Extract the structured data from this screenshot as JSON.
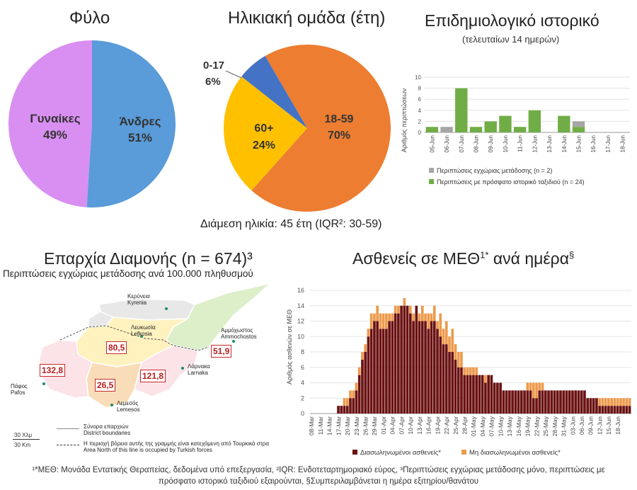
{
  "sex": {
    "title": "Φύλο",
    "colors": {
      "women": "#d98ff2",
      "men": "#5a9bd9"
    },
    "women_label": "Γυναίκες",
    "women_pct": "49%",
    "men_label": "Άνδρες",
    "men_pct": "51%"
  },
  "age": {
    "title": "Ηλικιακή ομάδα (έτη)",
    "median_note": "Διάμεση ηλικία: 45 έτη (IQR²: 30-59)",
    "colors": {
      "a0_17": "#4472c4",
      "a18_59": "#ed7d31",
      "a60": "#ffc000"
    },
    "a0_17_label": "0-17",
    "a0_17_pct": "6%",
    "a18_59_label": "18-59",
    "a18_59_pct": "70%",
    "a60_label": "60+",
    "a60_pct": "24%"
  },
  "epi": {
    "title": "Επιδημιολογικό ιστορικό",
    "subtitle": "(τελευταίων 14 ημερών)",
    "ylabel": "Αριθμός περιπτώσεων",
    "legend_local": "Περιπτώσεις εγχώριας μετάδοσης (n = 2)",
    "legend_travel": "Περιπτώσεις με πρόσφατο ιστορικό ταξιδιού (n = 24)",
    "colors": {
      "local": "#a6a6a6",
      "travel": "#70ad47"
    }
  },
  "map": {
    "title": "Επαρχία Διαμονής (n = 674)³",
    "subtitle": "Περιπτώσεις εγχώριας μετάδοσης ανά 100.000 πληθυσμού",
    "kyrenia": "Κερύνεια",
    "kyrenia_en": "Kyrenia",
    "nicosia": "Λευκωσία",
    "nicosia_en": "Lefkosia",
    "famagusta": "Αμμόχωστος",
    "famagusta_en": "Ammochostos",
    "larnaca": "Λάρνακα",
    "larnaca_en": "Larnaka",
    "paphos": "Πάφος",
    "paphos_en": "Pafos",
    "limassol": "Λεμεσός",
    "limassol_en": "Lemesos",
    "val_nicosia": "80,5",
    "val_famagusta": "51,9",
    "val_paphos": "132,8",
    "val_limassol": "26,5",
    "val_larnaca": "121,8",
    "scale_mi": "30 Χλμ",
    "scale_km": "30 Km",
    "legend_boundaries": "Σύνορα επαρχιών",
    "legend_boundaries_en": "District boundaries",
    "legend_north": "Η περιοχή βόρεια αυτής της γραμμής είναι κατεχόμενη από Τουρκικά στρα",
    "legend_north_en": "Area North of this line is occupied by Turkish forces"
  },
  "icu": {
    "title": "Ασθενείς σε ΜΕΘ",
    "title_sup": "1*",
    "title_rest": " ανά ημέρα",
    "title_sup2": "§",
    "ylabel": "Αριθμός ασθενών σε ΜΕΘ",
    "legend_intub": "Διασωληνωμένοι ασθενείς*",
    "legend_nonintub": "Μη διασωληνωμένοι ασθενείς*",
    "colors": {
      "intub": "#6b1212",
      "nonintub": "#ed9a4c"
    }
  },
  "footnote_line1": "¹*ΜΕΘ: Μονάδα Εντατικής Θεραπείας, δεδομένα υπό επεξεργασία, ²IQR: Ενδοτεταρτημοριακό εύρος, ³Περιπτώσεις εγχώριας μετάδοσης μόνο, περιπτώσεις με",
  "footnote_line2": "πρόσφατο ιστορικό ταξιδιού εξαιρούνται, §Συμπεριλαμβάνεται η ημέρα εξιτηρίου/θανάτου",
  "chart_data": [
    {
      "type": "pie",
      "title": "Φύλο",
      "labels": [
        "Γυναίκες",
        "Άνδρες"
      ],
      "values": [
        49,
        51
      ]
    },
    {
      "type": "pie",
      "title": "Ηλικιακή ομάδα (έτη)",
      "labels": [
        "0-17",
        "18-59",
        "60+"
      ],
      "values": [
        6,
        70,
        24
      ]
    },
    {
      "type": "bar",
      "stacked": true,
      "title": "Επιδημιολογικό ιστορικό",
      "ylabel": "Αριθμός περιπτώσεων",
      "ylim": [
        0,
        10
      ],
      "yticks": [
        0,
        2,
        4,
        6,
        8,
        10
      ],
      "categories": [
        "05-Jun",
        "06-Jun",
        "07-Jun",
        "08-Jun",
        "09-Jun",
        "10-Jun",
        "11-Jun",
        "12-Jun",
        "13-Jun",
        "14-Jun",
        "15-Jun",
        "16-Jun",
        "17-Jun",
        "18-Jun"
      ],
      "x_labels": [
        "05-Jun",
        "06-Jun",
        "07-Jun",
        "08-Jun",
        "09-Jun",
        "10-Jun",
        "11-Jun",
        "12-Jun",
        "13-Jun",
        "14-Jun",
        "15-Jun",
        "16-Jun",
        "17-Jun",
        "18-Jun"
      ],
      "series": [
        {
          "name": "Περιπτώσεις με πρόσφατο ιστορικό ταξιδιού (n = 24)",
          "values": [
            1,
            0,
            8,
            1,
            2,
            3,
            1,
            4,
            0,
            3,
            1,
            0,
            0,
            0
          ]
        },
        {
          "name": "Περιπτώσεις εγχώριας μετάδοσης (n = 2)",
          "values": [
            0,
            1,
            0,
            0,
            0,
            0,
            0,
            0,
            0,
            0,
            1,
            0,
            0,
            0
          ]
        }
      ]
    },
    {
      "type": "bar",
      "stacked": true,
      "title": "Ασθενείς σε ΜΕΘ ανά ημέρα",
      "ylabel": "Αριθμός ασθενών σε ΜΕΘ",
      "ylim": [
        0,
        16
      ],
      "yticks": [
        0,
        2,
        4,
        6,
        8,
        10,
        12,
        14,
        16
      ],
      "x_labels": [
        "08-Mar",
        "11-Mar",
        "14-Mar",
        "17-Mar",
        "20-Mar",
        "23-Mar",
        "26-Mar",
        "29-Mar",
        "01-Apr",
        "04-Apr",
        "07-Apr",
        "10-Apr",
        "13-Apr",
        "16-Apr",
        "19-Apr",
        "22-Apr",
        "25-Apr",
        "28-Apr",
        "01-May",
        "04-May",
        "07-May",
        "10-May",
        "13-May",
        "16-May",
        "19-May",
        "22-May",
        "25-May",
        "28-May",
        "31-May",
        "03-Jun",
        "06-Jun",
        "09-Jun",
        "12-Jun",
        "15-Jun",
        "18-Jun"
      ],
      "days_from": "08-Mar",
      "series": [
        {
          "name": "Διασωληνωμένοι ασθενείς*",
          "values": [
            0,
            0,
            0,
            0,
            0,
            0,
            0,
            0,
            0,
            1,
            1,
            1,
            1,
            2,
            2,
            3,
            5,
            7,
            8,
            10,
            11,
            12,
            12,
            11,
            11,
            11,
            12,
            12,
            13,
            13,
            14,
            14,
            14,
            13,
            12,
            14,
            12,
            12,
            12,
            11,
            12,
            12,
            11,
            10,
            9,
            9,
            8,
            8,
            7,
            6,
            6,
            5,
            5,
            5,
            5,
            5,
            5,
            5,
            4,
            5,
            5,
            4,
            4,
            4,
            3,
            3,
            3,
            3,
            3,
            3,
            3,
            3,
            3,
            3,
            2,
            2,
            3,
            3,
            3,
            3,
            3,
            3,
            3,
            3,
            3,
            3,
            3,
            3,
            3,
            3,
            3,
            3,
            2,
            2,
            2,
            2,
            1,
            1,
            1,
            1,
            1,
            1,
            1,
            1,
            1,
            1,
            1
          ]
        },
        {
          "name": "Μη διασωληνωμένοι ασθενείς*",
          "values": [
            0,
            0,
            0,
            0,
            0,
            0,
            0,
            0,
            0,
            0,
            0,
            1,
            1,
            1,
            1,
            1,
            1,
            1,
            1,
            1,
            2,
            1,
            2,
            2,
            2,
            2,
            1,
            1,
            1,
            1,
            0,
            1,
            0,
            1,
            1,
            0,
            1,
            2,
            1,
            2,
            1,
            2,
            1,
            3,
            2,
            3,
            2,
            3,
            2,
            2,
            2,
            1,
            1,
            1,
            1,
            1,
            0,
            0,
            1,
            0,
            0,
            0,
            0,
            0,
            0,
            0,
            0,
            0,
            0,
            0,
            0,
            0,
            1,
            1,
            2,
            2,
            1,
            1,
            0,
            0,
            0,
            0,
            0,
            0,
            0,
            0,
            0,
            0,
            0,
            0,
            0,
            0,
            0,
            0,
            0,
            0,
            1,
            1,
            1,
            1,
            1,
            1,
            1,
            1,
            1,
            1,
            1
          ]
        }
      ]
    }
  ]
}
